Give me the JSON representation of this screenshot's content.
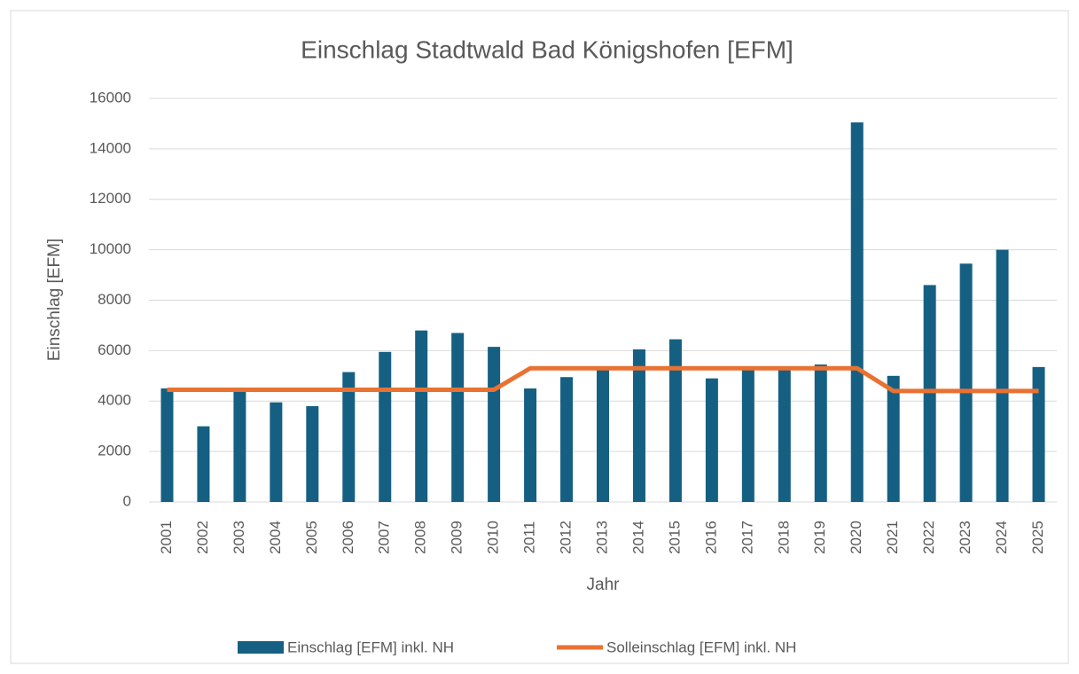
{
  "chart_data": {
    "type": "bar_line",
    "title": "Einschlag Stadtwald Bad Königshofen [EFM]",
    "x_label": "Jahr",
    "y_label": "Einschlag [EFM]",
    "categories": [
      "2001",
      "2002",
      "2003",
      "2004",
      "2005",
      "2006",
      "2007",
      "2008",
      "2009",
      "2010",
      "2011",
      "2012",
      "2013",
      "2014",
      "2015",
      "2016",
      "2017",
      "2018",
      "2019",
      "2020",
      "2021",
      "2022",
      "2023",
      "2024",
      "2025"
    ],
    "series": [
      {
        "name": "Einschlag [EFM] inkl. NH",
        "type": "bar",
        "color": "#156082",
        "values": [
          4500,
          3000,
          4400,
          3950,
          3800,
          5150,
          5950,
          6800,
          6700,
          6150,
          4500,
          4950,
          5300,
          6050,
          6450,
          4900,
          5350,
          5300,
          5450,
          15050,
          5000,
          8600,
          9450,
          10000,
          5350
        ]
      },
      {
        "name": "Solleinschlag [EFM] inkl. NH",
        "type": "line",
        "color": "#e97132",
        "values": [
          4450,
          4450,
          4450,
          4450,
          4450,
          4450,
          4450,
          4450,
          4450,
          4450,
          5300,
          5300,
          5300,
          5300,
          5300,
          5300,
          5300,
          5300,
          5300,
          5300,
          4400,
          4400,
          4400,
          4400,
          4400
        ]
      }
    ],
    "ylim": [
      0,
      16000
    ],
    "yticks": [
      0,
      2000,
      4000,
      6000,
      8000,
      10000,
      12000,
      14000,
      16000
    ],
    "grid": true,
    "legend": "bottom"
  }
}
